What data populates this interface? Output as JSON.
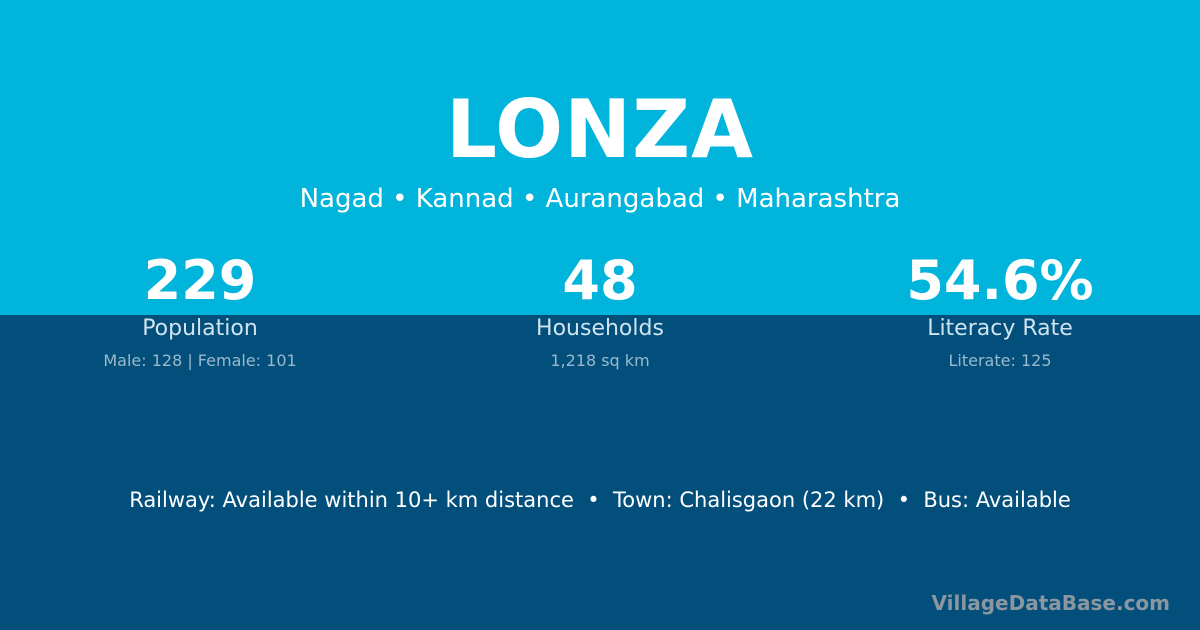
{
  "village": {
    "name": "LONZA",
    "breadcrumb": "Nagad • Kannad • Aurangabad • Maharashtra"
  },
  "stats": [
    {
      "value": "229",
      "label": "Population",
      "detail": "Male: 128 | Female: 101"
    },
    {
      "value": "48",
      "label": "Households",
      "detail": "1,218 sq km"
    },
    {
      "value": "54.6%",
      "label": "Literacy Rate",
      "detail": "Literate: 125"
    }
  ],
  "transport": "Railway: Available within 10+ km distance  •  Town: Chalisgaon (22 km)  •  Bus: Available",
  "brand": "VillageDataBase.com",
  "colors": {
    "top": "#00b4dc",
    "bottom": "#034f7b"
  }
}
